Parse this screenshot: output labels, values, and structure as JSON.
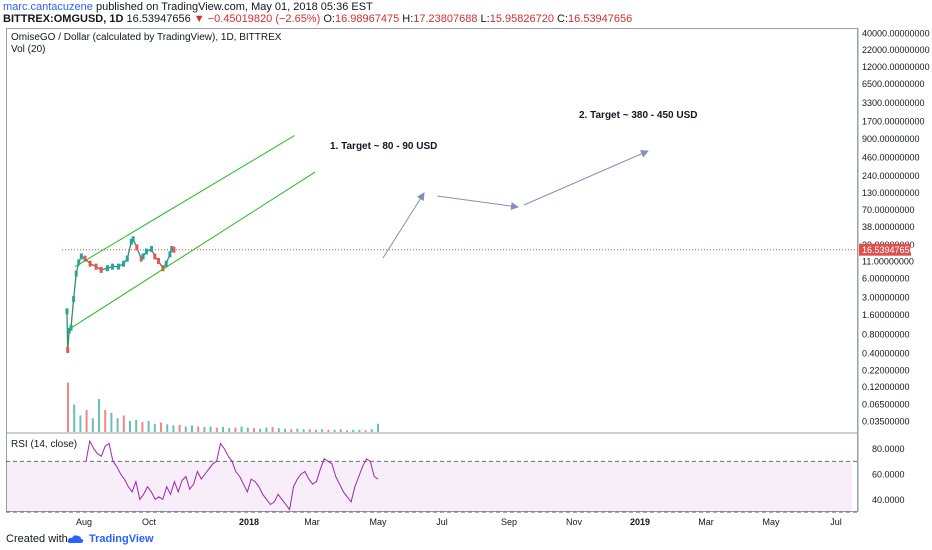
{
  "header": {
    "author": "marc.cantacuzene",
    "published_text": "published on TradingView.com, May 01, 2018 05:36 EST",
    "symbol_line": "BITTREX:OMGUSD, 1D",
    "last_price": "16.53947656",
    "change_arrow": "▼",
    "change": "−0.45019820 (−2.65%)",
    "open_label": "O:",
    "open": "16.98967475",
    "high_label": "H:",
    "high": "17.23807688",
    "low_label": "L:",
    "low": "15.95826720",
    "close_label": "C:",
    "close": "16.53947656"
  },
  "chart_data": {
    "type": "line",
    "title": "OmiseGO / Dollar (calculated by TradingView), 1D, BITTREX",
    "volume_label": "Vol (20)",
    "rsi_label": "RSI (14, close)",
    "scale": "log",
    "x_tick_labels": [
      "Aug",
      "Oct",
      "2018",
      "Mar",
      "May",
      "Jul",
      "Sep",
      "Nov",
      "2019",
      "Mar",
      "May",
      "Jul"
    ],
    "y_tick_labels": [
      "40000.00000000",
      "22000.00000000",
      "12000.00000000",
      "6500.00000000",
      "3300.00000000",
      "1700.00000000",
      "900.00000000",
      "460.00000000",
      "240.00000000",
      "130.00000000",
      "70.00000000",
      "38.00000000",
      "20.00000000",
      "11.00000000",
      "6.00000000",
      "3.00000000",
      "1.60000000",
      "0.80000000",
      "0.40000000",
      "0.22000000",
      "0.12000000",
      "0.06500000",
      "0.03500000"
    ],
    "rsi_tick_labels": [
      "80.0000",
      "60.0000",
      "40.0000"
    ],
    "current_price_label": "16.53947656",
    "price_series": {
      "name": "OMGUSD",
      "x": [
        "2017-07-14",
        "2017-07-16",
        "2017-07-20",
        "2017-07-25",
        "2017-08-01",
        "2017-08-08",
        "2017-08-15",
        "2017-08-22",
        "2017-09-01",
        "2017-09-15",
        "2017-10-01",
        "2017-10-15",
        "2017-11-01",
        "2017-11-15",
        "2017-12-01",
        "2017-12-15",
        "2017-12-25",
        "2018-01-05",
        "2018-01-10",
        "2018-01-20",
        "2018-02-01",
        "2018-02-06",
        "2018-02-15",
        "2018-03-01",
        "2018-03-10",
        "2018-03-20",
        "2018-04-01",
        "2018-04-10",
        "2018-04-20",
        "2018-04-25",
        "2018-05-01"
      ],
      "values": [
        1.8,
        0.45,
        0.9,
        1.0,
        2.8,
        7.0,
        10.5,
        13.0,
        12.0,
        10.0,
        9.0,
        8.0,
        8.5,
        9.0,
        9.0,
        10.0,
        12.0,
        22.0,
        24.0,
        18.0,
        12.0,
        13.0,
        15.5,
        17.0,
        13.0,
        11.0,
        8.5,
        10.0,
        14.0,
        17.0,
        16.54
      ]
    },
    "rsi_levels": [
      70,
      30
    ],
    "rsi_values": [
      70,
      86,
      80,
      76,
      74,
      82,
      84,
      70,
      66,
      60,
      56,
      50,
      46,
      54,
      40,
      44,
      50,
      46,
      40,
      42,
      40,
      50,
      44,
      54,
      46,
      55,
      58,
      48,
      52,
      62,
      56,
      60,
      64,
      68,
      70,
      84,
      80,
      74,
      70,
      62,
      58,
      52,
      46,
      56,
      54,
      50,
      44,
      40,
      36,
      38,
      44,
      40,
      36,
      32,
      50,
      56,
      60,
      62,
      56,
      52,
      54,
      64,
      72,
      70,
      68,
      58,
      52,
      46,
      42,
      38,
      50,
      58,
      66,
      72,
      70,
      58,
      56
    ],
    "channel_upper": {
      "from": {
        "date": "2017-08-05",
        "price": 9.0
      },
      "to": {
        "date": "2019-03-25",
        "price": 1000
      }
    },
    "channel_lower": {
      "from": {
        "date": "2017-07-20",
        "price": 0.95
      },
      "to": {
        "date": "2019-05-20",
        "price": 270
      }
    },
    "annotations": [
      "1. Target ~ 80 - 90 USD",
      "2. Target ~ 380 - 450 USD"
    ],
    "colors": {
      "candle_up": "#26a69a",
      "candle_down": "#ef5350",
      "channel": "#22bb22",
      "arrow": "#8090b8",
      "rsi": "#9c27b0",
      "price_line": "#e05050"
    }
  },
  "footer": {
    "created_with": "Created with",
    "brand": "TradingView"
  }
}
